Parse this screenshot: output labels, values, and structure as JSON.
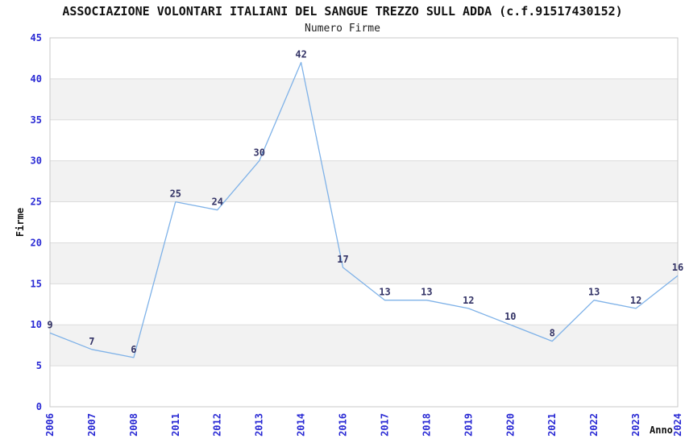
{
  "chart_data": {
    "type": "line",
    "title": "ASSOCIAZIONE VOLONTARI ITALIANI DEL SANGUE TREZZO SULL ADDA (c.f.91517430152)",
    "subtitle": "Numero Firme",
    "xlabel": "Anno",
    "ylabel": "Firme",
    "categories": [
      "2006",
      "2007",
      "2008",
      "2011",
      "2012",
      "2013",
      "2014",
      "2016",
      "2017",
      "2018",
      "2019",
      "2020",
      "2021",
      "2022",
      "2023",
      "2024"
    ],
    "values": [
      9,
      7,
      6,
      25,
      24,
      30,
      42,
      17,
      13,
      13,
      12,
      10,
      8,
      13,
      12,
      16
    ],
    "ylim": [
      0,
      45
    ],
    "ytick_step": 5,
    "grid": "horizontal-bands",
    "legend_position": "none",
    "colors": {
      "line": "#7fb2e8",
      "point_label": "#333366",
      "tick_label": "#2929d4",
      "band_fill": "#f2f2f2",
      "grid_line": "#dcdcdc",
      "plot_border": "#c9c9c9",
      "background": "#ffffff"
    }
  }
}
